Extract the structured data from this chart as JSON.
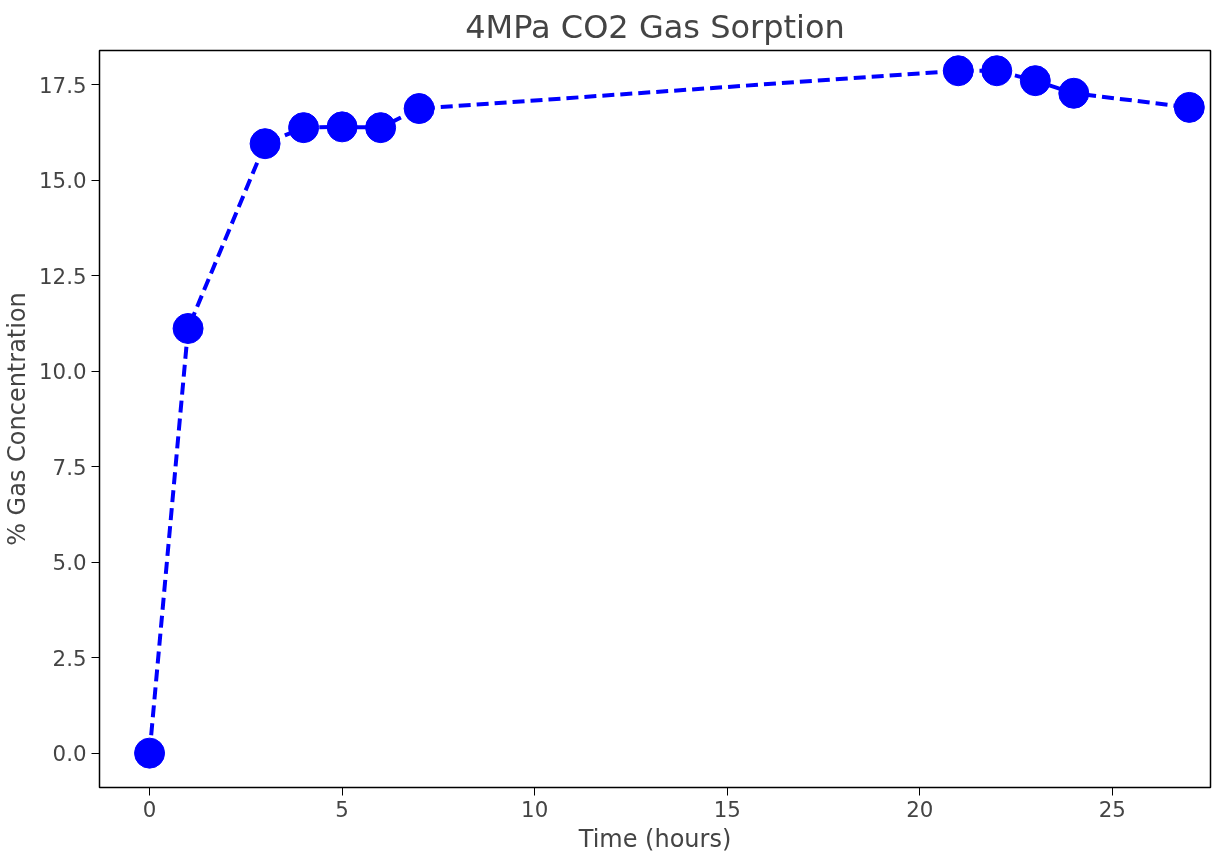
{
  "chart_data": {
    "type": "line",
    "title": "4MPa CO2 Gas Sorption",
    "xlabel": "Time (hours)",
    "ylabel": "% Gas Concentration",
    "x": [
      0,
      1,
      3,
      4,
      5,
      6,
      7,
      21,
      22,
      23,
      24,
      27
    ],
    "series": [
      {
        "color": "#0000ff",
        "values": [
          0,
          11.12,
          15.96,
          16.38,
          16.4,
          16.38,
          16.88,
          17.87,
          17.87,
          17.61,
          17.28,
          16.91
        ]
      }
    ],
    "xlim": [
      -1.3,
      27.55
    ],
    "ylim": [
      -0.9,
      18.4
    ],
    "xticks": [
      0,
      5,
      10,
      15,
      20,
      25
    ],
    "yticks": [
      {
        "value": 0,
        "label": "0.0"
      },
      {
        "value": 2.5,
        "label": "2.5"
      },
      {
        "value": 5,
        "label": "5.0"
      },
      {
        "value": 7.5,
        "label": "7.5"
      },
      {
        "value": 10,
        "label": "10.0"
      },
      {
        "value": 12.5,
        "label": "12.5"
      },
      {
        "value": 15,
        "label": "15.0"
      },
      {
        "value": 17.5,
        "label": "17.5"
      }
    ],
    "grid": false,
    "marker": "circle",
    "line_style": "dashed"
  }
}
